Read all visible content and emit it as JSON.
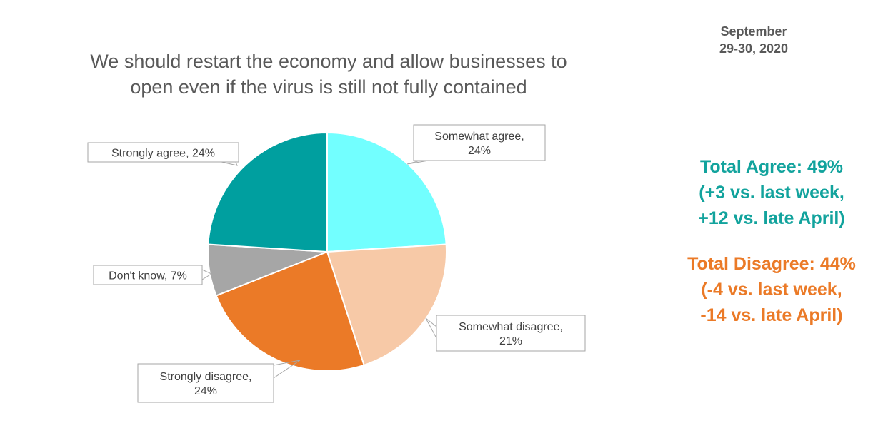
{
  "date": {
    "line1": "September",
    "line2": "29-30, 2020"
  },
  "colors": {
    "strongly_agree": "#009f9f",
    "somewhat_agree": "#72ffff",
    "somewhat_disagree": "#f7c9a7",
    "strongly_disagree": "#eb7a27",
    "dont_know": "#a6a6a6",
    "agree_text": "#12a39d",
    "disagree_text": "#eb7a27"
  },
  "chart_data": {
    "type": "pie",
    "title_lines": [
      "We should restart the economy and allow businesses to",
      "open even if the virus is still not fully contained"
    ],
    "slices": [
      {
        "key": "somewhat_agree",
        "label_lines": [
          "Somewhat agree,",
          "24%"
        ],
        "value": 24
      },
      {
        "key": "somewhat_disagree",
        "label_lines": [
          "Somewhat disagree,",
          "21%"
        ],
        "value": 21
      },
      {
        "key": "strongly_disagree",
        "label_lines": [
          "Strongly disagree,",
          "24%"
        ],
        "value": 24
      },
      {
        "key": "dont_know",
        "label_lines": [
          "Don't know, 7%"
        ],
        "value": 7
      },
      {
        "key": "strongly_agree",
        "label_lines": [
          "Strongly agree, 24%"
        ],
        "value": 24
      }
    ],
    "legend": "none (callout data labels)"
  },
  "summary": {
    "agree": {
      "lines": [
        "Total Agree: 49%",
        "(+3 vs. last week,",
        "+12 vs. late April)"
      ]
    },
    "disagree": {
      "lines": [
        "Total Disagree: 44%",
        "(-4 vs. last week,",
        "-14 vs. late April)"
      ]
    }
  }
}
